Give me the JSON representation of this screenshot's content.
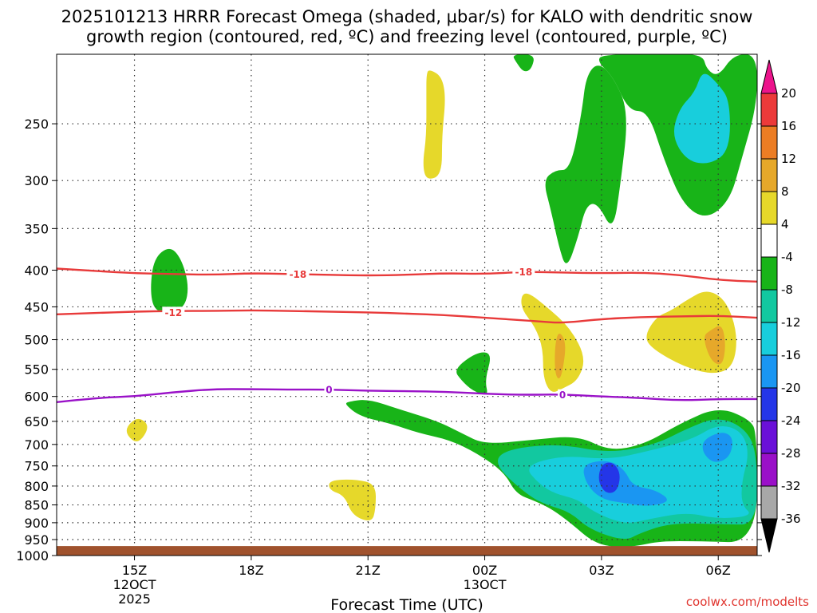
{
  "chart_data": {
    "type": "contour",
    "title_line1": "2025101213 HRRR Forecast Omega (shaded, μbar/s) for KALO with dendritic snow",
    "title_line2": "growth region (contoured, red, ºC) and freezing level (contoured, purple, ºC)",
    "xlabel": "Forecast Time (UTC)",
    "credit": "coolwx.com/modelts",
    "x_hours": [
      13,
      31
    ],
    "x_ticks": [
      {
        "h": 15,
        "label": "15Z",
        "sub1": "12OCT",
        "sub2": "2025"
      },
      {
        "h": 18,
        "label": "18Z",
        "sub1": "",
        "sub2": ""
      },
      {
        "h": 21,
        "label": "21Z",
        "sub1": "",
        "sub2": ""
      },
      {
        "h": 24,
        "label": "00Z",
        "sub1": "13OCT",
        "sub2": ""
      },
      {
        "h": 27,
        "label": "03Z",
        "sub1": "",
        "sub2": ""
      },
      {
        "h": 30,
        "label": "06Z",
        "sub1": "",
        "sub2": ""
      }
    ],
    "y_ticks": [
      250,
      300,
      350,
      400,
      450,
      500,
      550,
      600,
      650,
      700,
      750,
      800,
      850,
      900,
      950,
      1000
    ],
    "y_range_hpa": [
      200,
      1000
    ],
    "y_log_scale": true,
    "ground_level_hpa": 970,
    "colorbar": {
      "levels": [
        -36,
        -32,
        -28,
        -24,
        -20,
        -16,
        -12,
        -8,
        -4,
        4,
        8,
        12,
        16,
        20
      ],
      "colors": [
        "#a8a8a8",
        "#9a10c8",
        "#6a10d8",
        "#2436e8",
        "#1a96f2",
        "#18cedc",
        "#12c8a0",
        "#18b418",
        "#ffffff",
        "#e6d82a",
        "#e6a82a",
        "#ec7d24",
        "#ec3a3a",
        "#ec148c"
      ],
      "top_color": "#ec148c",
      "bottom_color": "#000000"
    },
    "contour_labels": [
      {
        "text": "-18",
        "h": 19.2,
        "p": 405,
        "color": "#e83a3a"
      },
      {
        "text": "-18",
        "h": 25.0,
        "p": 402,
        "color": "#e83a3a"
      },
      {
        "text": "-12",
        "h": 16.0,
        "p": 458,
        "color": "#e83a3a"
      },
      {
        "text": "0",
        "h": 20.0,
        "p": 587,
        "color": "#9a12c8"
      },
      {
        "text": "0",
        "h": 26.0,
        "p": 597,
        "color": "#9a12c8"
      }
    ],
    "isotherms": [
      {
        "temp": -18,
        "color": "#e83a3a",
        "points": [
          [
            13,
            398
          ],
          [
            14,
            401
          ],
          [
            15,
            404
          ],
          [
            16,
            405
          ],
          [
            17,
            406
          ],
          [
            18,
            404
          ],
          [
            19,
            405
          ],
          [
            20,
            406
          ],
          [
            21,
            407
          ],
          [
            22,
            406
          ],
          [
            23,
            404
          ],
          [
            24,
            405
          ],
          [
            25,
            402
          ],
          [
            26,
            403
          ],
          [
            27,
            404
          ],
          [
            28,
            403
          ],
          [
            29,
            406
          ],
          [
            30,
            413
          ],
          [
            31,
            415
          ]
        ]
      },
      {
        "temp": -12,
        "color": "#e83a3a",
        "points": [
          [
            13,
            461
          ],
          [
            14,
            459
          ],
          [
            15,
            457
          ],
          [
            16,
            456
          ],
          [
            17,
            456
          ],
          [
            18,
            455
          ],
          [
            19,
            456
          ],
          [
            20,
            457
          ],
          [
            21,
            458
          ],
          [
            22,
            460
          ],
          [
            23,
            462
          ],
          [
            24,
            466
          ],
          [
            25,
            470
          ],
          [
            25.5,
            472
          ],
          [
            26,
            474
          ],
          [
            27,
            468
          ],
          [
            28,
            465
          ],
          [
            29,
            464
          ],
          [
            30,
            463
          ],
          [
            31,
            466
          ]
        ]
      },
      {
        "temp": 0,
        "color": "#9a12c8",
        "points": [
          [
            13,
            611
          ],
          [
            14,
            603
          ],
          [
            15,
            600
          ],
          [
            16,
            592
          ],
          [
            17,
            586
          ],
          [
            18,
            586
          ],
          [
            19,
            587
          ],
          [
            20,
            587
          ],
          [
            21,
            589
          ],
          [
            22,
            590
          ],
          [
            23,
            591
          ],
          [
            24,
            595
          ],
          [
            25,
            597
          ],
          [
            26,
            596
          ],
          [
            27,
            600
          ],
          [
            28,
            603
          ],
          [
            29,
            608
          ],
          [
            30,
            605
          ],
          [
            31,
            605
          ]
        ]
      }
    ],
    "omega_regions": [
      {
        "value": -6,
        "points": [
          [
            28.7,
            200
          ],
          [
            29.6,
            200
          ],
          [
            29.7,
            210
          ],
          [
            30.0,
            215
          ],
          [
            30.4,
            200
          ],
          [
            31,
            200
          ],
          [
            31,
            235
          ],
          [
            30.6,
            280
          ],
          [
            30.3,
            320
          ],
          [
            29.7,
            340
          ],
          [
            29.1,
            325
          ],
          [
            28.6,
            280
          ],
          [
            28.2,
            240
          ],
          [
            27.7,
            240
          ],
          [
            27.3,
            215
          ],
          [
            26.9,
            205
          ],
          [
            27.0,
            200
          ]
        ]
      },
      {
        "value": -6,
        "points": [
          [
            26.9,
            205
          ],
          [
            27.3,
            215
          ],
          [
            27.7,
            240
          ],
          [
            27.5,
            300
          ],
          [
            27.3,
            355
          ],
          [
            26.9,
            322
          ],
          [
            26.6,
            325
          ],
          [
            26.4,
            360
          ],
          [
            26.1,
            400
          ],
          [
            25.9,
            370
          ],
          [
            25.7,
            330
          ],
          [
            25.5,
            300
          ],
          [
            25.8,
            290
          ],
          [
            26.2,
            290
          ],
          [
            26.5,
            240
          ],
          [
            26.6,
            215
          ]
        ]
      },
      {
        "value": -6,
        "points": [
          [
            24.7,
            200
          ],
          [
            25.3,
            200
          ],
          [
            25.2,
            210
          ],
          [
            25.0,
            212
          ],
          [
            24.8,
            205
          ]
        ]
      },
      {
        "value": -14,
        "points": [
          [
            29.6,
            210
          ],
          [
            30.0,
            220
          ],
          [
            30.3,
            232
          ],
          [
            30.3,
            272
          ],
          [
            29.8,
            285
          ],
          [
            29.2,
            282
          ],
          [
            28.8,
            260
          ],
          [
            29.0,
            238
          ],
          [
            29.4,
            226
          ]
        ]
      },
      {
        "value": 6,
        "points": [
          [
            22.6,
            210
          ],
          [
            22.9,
            215
          ],
          [
            23.0,
            230
          ],
          [
            22.9,
            260
          ],
          [
            22.9,
            295
          ],
          [
            22.5,
            300
          ],
          [
            22.4,
            285
          ],
          [
            22.5,
            260
          ],
          [
            22.5,
            230
          ],
          [
            22.5,
            212
          ]
        ]
      },
      {
        "value": -6,
        "points": [
          [
            15.5,
            385
          ],
          [
            15.9,
            370
          ],
          [
            16.2,
            385
          ],
          [
            16.4,
            420
          ],
          [
            16.3,
            450
          ],
          [
            15.9,
            460
          ],
          [
            15.5,
            455
          ],
          [
            15.4,
            425
          ]
        ]
      },
      {
        "value": 6,
        "points": [
          [
            25.0,
            425
          ],
          [
            25.6,
            450
          ],
          [
            26.2,
            482
          ],
          [
            26.6,
            530
          ],
          [
            26.4,
            570
          ],
          [
            26.0,
            585
          ],
          [
            25.7,
            595
          ],
          [
            25.5,
            565
          ],
          [
            25.5,
            515
          ],
          [
            25.3,
            480
          ],
          [
            24.9,
            450
          ]
        ]
      },
      {
        "value": 10,
        "points": [
          [
            25.9,
            485
          ],
          [
            26.1,
            505
          ],
          [
            26.0,
            555
          ],
          [
            25.9,
            570
          ],
          [
            25.8,
            555
          ],
          [
            25.8,
            510
          ]
        ]
      },
      {
        "value": 6,
        "points": [
          [
            29.2,
            440
          ],
          [
            29.7,
            425
          ],
          [
            30.2,
            440
          ],
          [
            30.5,
            490
          ],
          [
            30.4,
            545
          ],
          [
            29.9,
            560
          ],
          [
            29.1,
            545
          ],
          [
            28.3,
            515
          ],
          [
            28.1,
            495
          ],
          [
            28.4,
            465
          ],
          [
            28.8,
            455
          ]
        ]
      },
      {
        "value": 10,
        "points": [
          [
            29.8,
            485
          ],
          [
            30.1,
            475
          ],
          [
            30.2,
            510
          ],
          [
            30.1,
            545
          ],
          [
            29.8,
            535
          ],
          [
            29.6,
            495
          ]
        ]
      },
      {
        "value": -6,
        "points": [
          [
            23.2,
            550
          ],
          [
            23.8,
            520
          ],
          [
            24.2,
            522
          ],
          [
            24.0,
            570
          ],
          [
            24.1,
            600
          ],
          [
            23.7,
            590
          ],
          [
            23.4,
            570
          ]
        ]
      },
      {
        "value": -6,
        "points": [
          [
            20.5,
            610
          ],
          [
            21.0,
            605
          ],
          [
            21.8,
            625
          ],
          [
            22.8,
            650
          ],
          [
            23.4,
            675
          ],
          [
            24.0,
            700
          ],
          [
            25.2,
            690
          ],
          [
            26.4,
            680
          ],
          [
            27.2,
            715
          ],
          [
            28.1,
            700
          ],
          [
            29.0,
            655
          ],
          [
            30.0,
            620
          ],
          [
            30.8,
            645
          ],
          [
            31,
            675
          ],
          [
            31,
            960
          ],
          [
            29.5,
            955
          ],
          [
            28.5,
            955
          ],
          [
            27.9,
            970
          ],
          [
            27.4,
            975
          ],
          [
            26.8,
            960
          ],
          [
            26.2,
            900
          ],
          [
            25.7,
            860
          ],
          [
            25.3,
            840
          ],
          [
            24.8,
            820
          ],
          [
            24.5,
            765
          ],
          [
            23.8,
            720
          ],
          [
            23.1,
            690
          ],
          [
            22.3,
            675
          ],
          [
            21.6,
            655
          ],
          [
            20.8,
            640
          ],
          [
            20.4,
            615
          ]
        ]
      },
      {
        "value": -10,
        "points": [
          [
            24.4,
            720
          ],
          [
            25.0,
            705
          ],
          [
            26.0,
            700
          ],
          [
            27.2,
            720
          ],
          [
            28.4,
            700
          ],
          [
            29.2,
            665
          ],
          [
            30.0,
            640
          ],
          [
            30.7,
            665
          ],
          [
            31,
            720
          ],
          [
            31,
            905
          ],
          [
            30.2,
            905
          ],
          [
            28.8,
            900
          ],
          [
            28.0,
            930
          ],
          [
            27.6,
            955
          ],
          [
            26.7,
            920
          ],
          [
            26.2,
            870
          ],
          [
            25.6,
            850
          ],
          [
            25.2,
            830
          ],
          [
            24.6,
            780
          ],
          [
            24.3,
            745
          ]
        ]
      },
      {
        "value": -14,
        "points": [
          [
            25.0,
            750
          ],
          [
            26.0,
            725
          ],
          [
            27.2,
            735
          ],
          [
            28.2,
            715
          ],
          [
            29.3,
            690
          ],
          [
            30.0,
            655
          ],
          [
            30.6,
            670
          ],
          [
            30.8,
            720
          ],
          [
            30.6,
            790
          ],
          [
            30.6,
            850
          ],
          [
            30.9,
            880
          ],
          [
            30.0,
            890
          ],
          [
            29.2,
            870
          ],
          [
            28.2,
            890
          ],
          [
            27.6,
            905
          ],
          [
            26.8,
            870
          ],
          [
            26.4,
            835
          ],
          [
            25.8,
            820
          ],
          [
            25.4,
            795
          ]
        ]
      },
      {
        "value": -18,
        "points": [
          [
            26.5,
            745
          ],
          [
            27.2,
            735
          ],
          [
            27.6,
            760
          ],
          [
            27.8,
            800
          ],
          [
            28.4,
            810
          ],
          [
            28.8,
            840
          ],
          [
            28.2,
            855
          ],
          [
            27.6,
            845
          ],
          [
            27.0,
            835
          ],
          [
            26.6,
            795
          ]
        ]
      },
      {
        "value": -18,
        "points": [
          [
            29.6,
            690
          ],
          [
            30.1,
            670
          ],
          [
            30.4,
            685
          ],
          [
            30.3,
            730
          ],
          [
            29.9,
            745
          ],
          [
            29.6,
            720
          ]
        ]
      },
      {
        "value": -22,
        "points": [
          [
            27.0,
            745
          ],
          [
            27.3,
            740
          ],
          [
            27.5,
            770
          ],
          [
            27.4,
            815
          ],
          [
            27.1,
            820
          ],
          [
            26.9,
            785
          ]
        ]
      },
      {
        "value": 6,
        "points": [
          [
            14.8,
            660
          ],
          [
            15.1,
            640
          ],
          [
            15.4,
            660
          ],
          [
            15.1,
            700
          ],
          [
            14.8,
            680
          ]
        ]
      },
      {
        "value": 6,
        "points": [
          [
            20.0,
            785
          ],
          [
            20.7,
            783
          ],
          [
            21.2,
            795
          ],
          [
            21.2,
            860
          ],
          [
            21.1,
            900
          ],
          [
            20.6,
            880
          ],
          [
            20.4,
            825
          ],
          [
            20.0,
            810
          ]
        ]
      }
    ]
  }
}
